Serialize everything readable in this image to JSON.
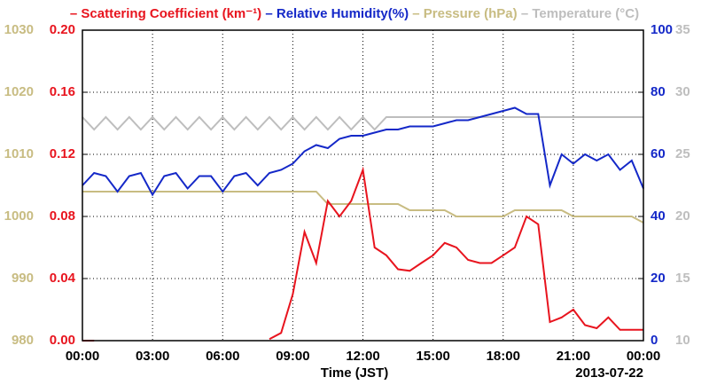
{
  "chart_data": {
    "type": "line",
    "series": [
      {
        "name": "Scattering Coefficient (km⁻¹)",
        "color": "#e8141e",
        "axis": "y",
        "values": [
          0,
          0,
          null,
          null,
          null,
          null,
          null,
          null,
          null,
          null,
          null,
          null,
          null,
          null,
          null,
          null,
          0.001,
          0.005,
          0.03,
          0.07,
          0.05,
          0.09,
          0.08,
          0.09,
          0.11,
          0.06,
          0.055,
          0.046,
          0.045,
          0.05,
          0.055,
          0.063,
          0.06,
          0.052,
          0.05,
          0.05,
          0.055,
          0.06,
          0.08,
          0.075,
          0.012,
          0.015,
          0.02,
          0.01,
          0.008,
          0.015,
          0.007,
          0.007,
          0.007
        ]
      },
      {
        "name": "Relative Humidity(%)",
        "color": "#1428c8",
        "axis": "y2",
        "values": [
          50,
          54,
          53,
          48,
          53,
          54,
          47,
          53,
          54,
          49,
          53,
          53,
          48,
          53,
          54,
          50,
          54,
          55,
          57,
          61,
          63,
          62,
          65,
          66,
          66,
          67,
          68,
          68,
          69,
          69,
          69,
          70,
          71,
          71,
          72,
          73,
          74,
          75,
          73,
          73,
          50,
          60,
          57,
          60,
          58,
          60,
          55,
          58,
          49
        ]
      },
      {
        "name": "Pressure (hPa)",
        "color": "#c8bc82",
        "axis": "y3",
        "values": [
          1004,
          1004,
          1004,
          1004,
          1004,
          1004,
          1004,
          1004,
          1004,
          1004,
          1004,
          1004,
          1004,
          1004,
          1004,
          1004,
          1004,
          1004,
          1004,
          1004,
          1004,
          1002,
          1002,
          1002,
          1002,
          1002,
          1002,
          1002,
          1001,
          1001,
          1001,
          1001,
          1000,
          1000,
          1000,
          1000,
          1000,
          1001,
          1001,
          1001,
          1001,
          1001,
          1000,
          1000,
          1000,
          1000,
          1000,
          1000,
          999
        ]
      },
      {
        "name": "Temperature (°C)",
        "color": "#bebebe",
        "axis": "y4",
        "values": [
          28,
          27,
          28,
          27,
          28,
          27,
          28,
          27,
          28,
          27,
          28,
          27,
          28,
          27,
          28,
          27,
          28,
          27,
          28,
          27,
          28,
          27,
          28,
          27,
          28,
          27,
          28,
          28,
          28,
          28,
          28,
          28,
          28,
          28,
          28,
          28,
          28,
          28,
          28,
          28,
          28,
          28,
          28,
          28,
          28,
          28,
          28,
          28,
          28
        ]
      }
    ],
    "x": [
      0,
      0.5,
      1,
      1.5,
      2,
      2.5,
      3,
      3.5,
      4,
      4.5,
      5,
      5.5,
      6,
      6.5,
      7,
      7.5,
      8,
      8.5,
      9,
      9.5,
      10,
      10.5,
      11,
      11.5,
      12,
      12.5,
      13,
      13.5,
      14,
      14.5,
      15,
      15.5,
      16,
      16.5,
      17,
      17.5,
      18,
      18.5,
      19,
      19.5,
      20,
      20.5,
      21,
      21.5,
      22,
      22.5,
      23,
      23.5,
      24
    ],
    "xlim": [
      0,
      24
    ],
    "xticks": [
      {
        "value": 0,
        "label": "00:00"
      },
      {
        "value": 3,
        "label": "03:00"
      },
      {
        "value": 6,
        "label": "06:00"
      },
      {
        "value": 9,
        "label": "09:00"
      },
      {
        "value": 12,
        "label": "12:00"
      },
      {
        "value": 15,
        "label": "15:00"
      },
      {
        "value": 18,
        "label": "18:00"
      },
      {
        "value": 21,
        "label": "21:00"
      },
      {
        "value": 24,
        "label": "00:00"
      }
    ],
    "xlabel": "Time (JST)",
    "date_label": "2013-07-22",
    "ylim": [
      0,
      0.2
    ],
    "yticks": [
      {
        "value": 0,
        "label": "0.00"
      },
      {
        "value": 0.04,
        "label": "0.04"
      },
      {
        "value": 0.08,
        "label": "0.08"
      },
      {
        "value": 0.12,
        "label": "0.12"
      },
      {
        "value": 0.16,
        "label": "0.16"
      },
      {
        "value": 0.2,
        "label": "0.20"
      }
    ],
    "y2lim": [
      0,
      100
    ],
    "y2ticks": [
      0,
      20,
      40,
      60,
      80,
      100
    ],
    "y3lim": [
      980,
      1030
    ],
    "y3ticks": [
      980,
      990,
      1000,
      1010,
      1020,
      1030
    ],
    "y4lim": [
      10,
      35
    ],
    "y4ticks": [
      10,
      15,
      20,
      25,
      30,
      35
    ],
    "grid": true
  }
}
